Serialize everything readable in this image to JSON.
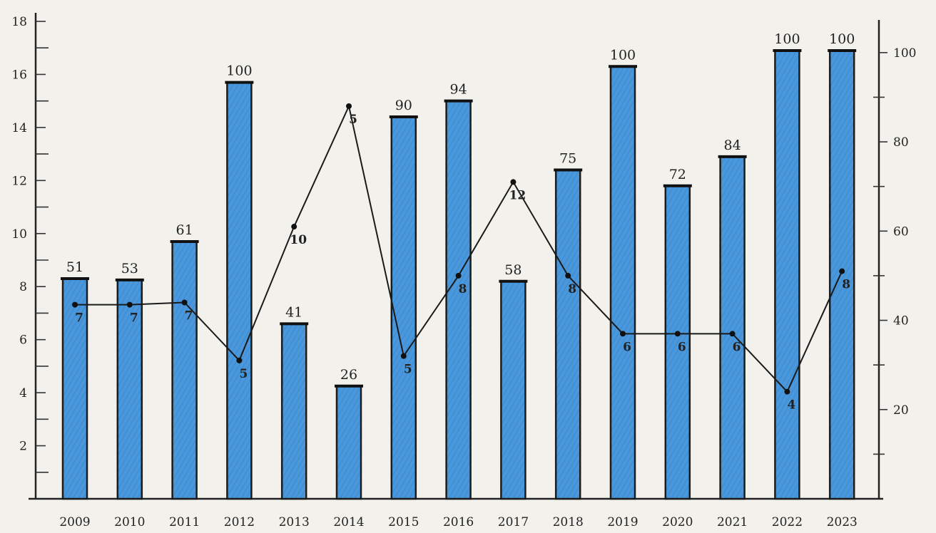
{
  "chart_data": {
    "type": "bar",
    "categories": [
      "2009",
      "2010",
      "2011",
      "2012",
      "2013",
      "2014",
      "2015",
      "2016",
      "2017",
      "2018",
      "2019",
      "2020",
      "2021",
      "2022",
      "2023"
    ],
    "series": [
      {
        "type": "bar",
        "axis": "left",
        "values": [
          8.3,
          8.25,
          9.7,
          15.7,
          6.6,
          4.25,
          14.4,
          15.0,
          8.2,
          12.4,
          16.3,
          11.8,
          12.9,
          16.9,
          16.9
        ],
        "labels": [
          "51",
          "53",
          "61",
          "100",
          "41",
          "26",
          "90",
          "94",
          "58",
          "75",
          "100",
          "72",
          "84",
          "100",
          "100"
        ],
        "color": "#3d8fd6"
      },
      {
        "type": "line",
        "axis": "right",
        "values": [
          43.5,
          43.5,
          44,
          31,
          61,
          88,
          32,
          50,
          71,
          50,
          37,
          37,
          37,
          24,
          51
        ],
        "labels": [
          "7",
          "7",
          "7",
          "5",
          "10",
          "5",
          "5",
          "8",
          "12",
          "8",
          "6",
          "6",
          "6",
          "4",
          "8"
        ],
        "color": "#1a1a1a"
      }
    ],
    "left_axis": {
      "ylim": [
        0,
        18
      ],
      "ticks": [
        "2",
        "4",
        "6",
        "8",
        "10",
        "12",
        "14",
        "16",
        "18"
      ]
    },
    "right_axis": {
      "ylim": [
        0,
        107
      ],
      "ticks": [
        "20",
        "40",
        "60",
        "80",
        "100"
      ]
    },
    "grid": false,
    "legend": "none"
  }
}
